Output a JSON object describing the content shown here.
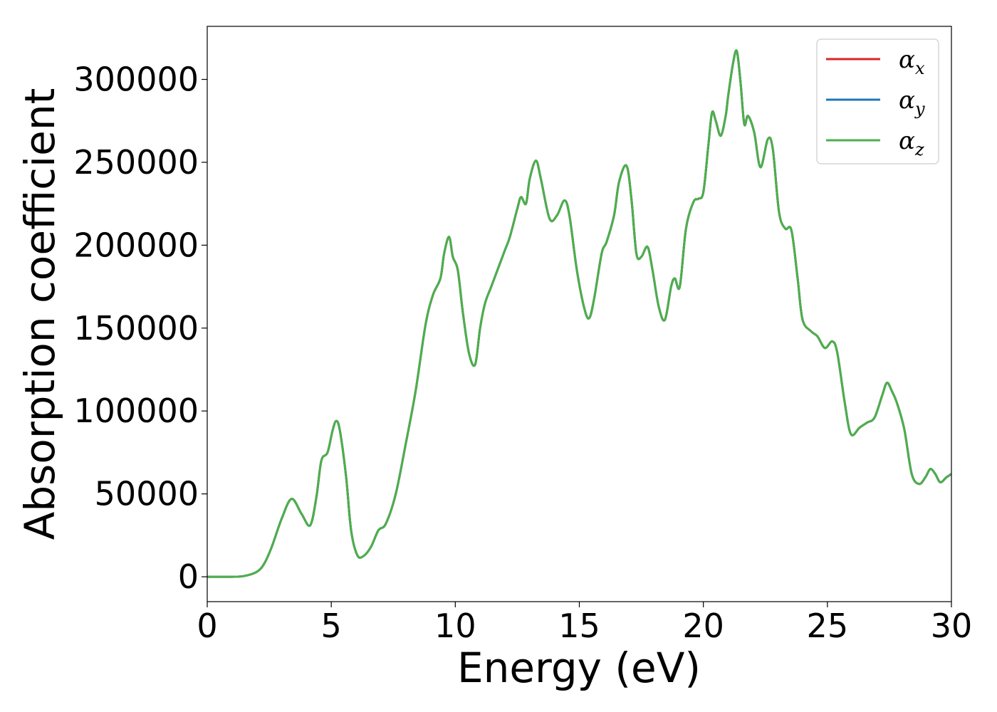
{
  "chart_data": {
    "type": "line",
    "title": "",
    "xlabel": "Energy (eV)",
    "ylabel": "Absorption coefficient",
    "xlim": [
      0,
      30
    ],
    "ylim": [
      -15000,
      332000
    ],
    "xticks": [
      0,
      5,
      10,
      15,
      20,
      25,
      30
    ],
    "xtick_labels": [
      "0",
      "5",
      "10",
      "15",
      "20",
      "25",
      "30"
    ],
    "yticks": [
      0,
      50000,
      100000,
      150000,
      200000,
      250000,
      300000
    ],
    "ytick_labels": [
      "0",
      "50000",
      "100000",
      "150000",
      "200000",
      "250000",
      "300000"
    ],
    "grid": false,
    "legend_position": "top-right",
    "series": [
      {
        "name": "α",
        "subscript": "x",
        "color": "#d62728"
      },
      {
        "name": "α",
        "subscript": "y",
        "color": "#1f77b4"
      },
      {
        "name": "α",
        "subscript": "z",
        "color": "#4daf4a"
      }
    ],
    "x": [
      0,
      1,
      1.5,
      2,
      2.3,
      2.6,
      3.0,
      3.4,
      3.8,
      4.15,
      4.4,
      4.6,
      4.85,
      5.05,
      5.2,
      5.35,
      5.6,
      5.8,
      6.05,
      6.3,
      6.6,
      6.9,
      7.2,
      7.6,
      8.0,
      8.4,
      8.8,
      9.1,
      9.4,
      9.55,
      9.75,
      9.9,
      10.1,
      10.3,
      10.55,
      10.8,
      11.0,
      11.2,
      11.45,
      11.7,
      12.0,
      12.2,
      12.5,
      12.65,
      12.85,
      13.0,
      13.25,
      13.45,
      13.8,
      14.1,
      14.4,
      14.6,
      14.9,
      15.2,
      15.4,
      15.6,
      15.9,
      16.1,
      16.4,
      16.6,
      16.9,
      17.1,
      17.3,
      17.5,
      17.75,
      17.95,
      18.2,
      18.45,
      18.7,
      18.85,
      19.05,
      19.3,
      19.6,
      19.8,
      20.0,
      20.2,
      20.35,
      20.5,
      20.7,
      20.9,
      21.0,
      21.2,
      21.35,
      21.5,
      21.65,
      21.8,
      22.05,
      22.3,
      22.6,
      22.8,
      23.05,
      23.3,
      23.55,
      23.8,
      24.0,
      24.35,
      24.6,
      24.9,
      25.2,
      25.4,
      25.7,
      25.95,
      26.3,
      26.6,
      26.9,
      27.2,
      27.4,
      27.6,
      27.8,
      28.1,
      28.4,
      28.7,
      28.95,
      29.15,
      29.35,
      29.55,
      29.8,
      30
    ],
    "values": [
      0,
      0,
      500,
      3000,
      8000,
      18000,
      35000,
      47000,
      38000,
      31000,
      48000,
      70000,
      75000,
      88000,
      94000,
      88000,
      60000,
      28000,
      13000,
      12500,
      18000,
      28000,
      32000,
      50000,
      80000,
      112000,
      152000,
      170000,
      180000,
      195000,
      205000,
      193000,
      185000,
      160000,
      135000,
      128000,
      150000,
      165000,
      175000,
      185000,
      197000,
      205000,
      222000,
      229000,
      225000,
      240000,
      251000,
      240000,
      216000,
      218000,
      227000,
      218000,
      185000,
      162000,
      156000,
      168000,
      195000,
      202000,
      218000,
      238000,
      248000,
      228000,
      195000,
      193000,
      199000,
      185000,
      163000,
      155000,
      175000,
      180000,
      175000,
      210000,
      226000,
      228000,
      232000,
      260000,
      280000,
      275000,
      266000,
      278000,
      290000,
      310000,
      317000,
      298000,
      273000,
      278000,
      268000,
      247000,
      264000,
      258000,
      220000,
      210000,
      209000,
      180000,
      155000,
      148000,
      145000,
      138000,
      142000,
      135000,
      105000,
      86000,
      90000,
      93000,
      96000,
      109000,
      117000,
      112000,
      105000,
      89000,
      62000,
      56000,
      60000,
      65000,
      62000,
      57000,
      60000,
      62000
    ]
  }
}
